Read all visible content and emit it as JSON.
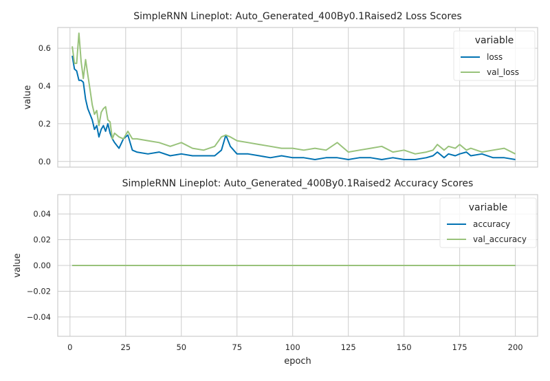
{
  "colors": {
    "loss": "#0072b2",
    "val_loss": "#98c27a",
    "accuracy": "#0072b2",
    "val_accuracy": "#98c27a",
    "grid": "#cccccc",
    "text": "#262626"
  },
  "chart_data": [
    {
      "type": "line",
      "title": "SimpleRNN Lineplot: Auto_Generated_400By0.1Raised2 Loss Scores",
      "xlabel": "",
      "ylabel": "value",
      "xlim": [
        -5.5,
        210
      ],
      "ylim": [
        -0.03,
        0.71
      ],
      "grid": true,
      "legend": {
        "title": "variable",
        "placement": "top-right"
      },
      "xticks": [
        0,
        25,
        50,
        75,
        100,
        125,
        150,
        175,
        200
      ],
      "xtick_labels": [],
      "yticks": [
        0.0,
        0.2,
        0.4,
        0.6
      ],
      "ytick_labels": [
        "0.0",
        "0.2",
        "0.4",
        "0.6"
      ],
      "series": [
        {
          "name": "loss",
          "color": "#0072b2",
          "x": [
            1,
            2,
            3,
            4,
            5,
            6,
            7,
            8,
            9,
            10,
            11,
            12,
            13,
            14,
            15,
            16,
            17,
            18,
            19,
            20,
            22,
            24,
            26,
            28,
            30,
            35,
            40,
            45,
            50,
            55,
            60,
            65,
            68,
            70,
            72,
            75,
            80,
            85,
            90,
            95,
            100,
            105,
            110,
            115,
            120,
            125,
            130,
            135,
            140,
            145,
            150,
            155,
            160,
            163,
            165,
            168,
            170,
            173,
            175,
            178,
            180,
            185,
            190,
            195,
            200
          ],
          "y": [
            0.56,
            0.49,
            0.48,
            0.43,
            0.43,
            0.42,
            0.33,
            0.28,
            0.25,
            0.22,
            0.17,
            0.19,
            0.13,
            0.17,
            0.19,
            0.16,
            0.2,
            0.15,
            0.12,
            0.1,
            0.07,
            0.12,
            0.14,
            0.06,
            0.05,
            0.04,
            0.05,
            0.03,
            0.04,
            0.03,
            0.03,
            0.03,
            0.06,
            0.14,
            0.08,
            0.04,
            0.04,
            0.03,
            0.02,
            0.03,
            0.02,
            0.02,
            0.01,
            0.02,
            0.02,
            0.01,
            0.02,
            0.02,
            0.01,
            0.02,
            0.01,
            0.01,
            0.02,
            0.03,
            0.05,
            0.02,
            0.04,
            0.03,
            0.04,
            0.05,
            0.03,
            0.04,
            0.02,
            0.02,
            0.01
          ]
        },
        {
          "name": "val_loss",
          "color": "#98c27a",
          "x": [
            1,
            2,
            3,
            4,
            5,
            6,
            7,
            8,
            9,
            10,
            11,
            12,
            13,
            14,
            15,
            16,
            17,
            18,
            19,
            20,
            22,
            24,
            26,
            28,
            30,
            35,
            40,
            45,
            50,
            55,
            60,
            65,
            68,
            70,
            72,
            75,
            80,
            85,
            90,
            95,
            100,
            105,
            110,
            115,
            120,
            125,
            130,
            135,
            140,
            145,
            150,
            155,
            160,
            163,
            165,
            168,
            170,
            173,
            175,
            178,
            180,
            185,
            190,
            195,
            200
          ],
          "y": [
            0.61,
            0.52,
            0.52,
            0.68,
            0.53,
            0.44,
            0.54,
            0.46,
            0.38,
            0.3,
            0.25,
            0.27,
            0.19,
            0.26,
            0.28,
            0.29,
            0.22,
            0.21,
            0.12,
            0.15,
            0.13,
            0.12,
            0.16,
            0.12,
            0.12,
            0.11,
            0.1,
            0.08,
            0.1,
            0.07,
            0.06,
            0.08,
            0.13,
            0.14,
            0.13,
            0.11,
            0.1,
            0.09,
            0.08,
            0.07,
            0.07,
            0.06,
            0.07,
            0.06,
            0.1,
            0.05,
            0.06,
            0.07,
            0.08,
            0.05,
            0.06,
            0.04,
            0.05,
            0.06,
            0.09,
            0.06,
            0.08,
            0.07,
            0.09,
            0.06,
            0.07,
            0.05,
            0.06,
            0.07,
            0.04
          ]
        }
      ]
    },
    {
      "type": "line",
      "title": "SimpleRNN Lineplot: Auto_Generated_400By0.1Raised2 Accuracy Scores",
      "xlabel": "epoch",
      "ylabel": "value",
      "xlim": [
        -5.5,
        210
      ],
      "ylim": [
        -0.055,
        0.055
      ],
      "grid": true,
      "legend": {
        "title": "variable",
        "placement": "top-right"
      },
      "xticks": [
        0,
        25,
        50,
        75,
        100,
        125,
        150,
        175,
        200
      ],
      "xtick_labels": [
        "0",
        "25",
        "50",
        "75",
        "100",
        "125",
        "150",
        "175",
        "200"
      ],
      "yticks": [
        -0.04,
        -0.02,
        0.0,
        0.02,
        0.04
      ],
      "ytick_labels": [
        "−0.04",
        "−0.02",
        "0.00",
        "0.02",
        "0.04"
      ],
      "series": [
        {
          "name": "accuracy",
          "color": "#0072b2",
          "x": [
            1,
            200
          ],
          "y": [
            0.0,
            0.0
          ]
        },
        {
          "name": "val_accuracy",
          "color": "#98c27a",
          "x": [
            1,
            200
          ],
          "y": [
            0.0,
            0.0
          ]
        }
      ]
    }
  ]
}
